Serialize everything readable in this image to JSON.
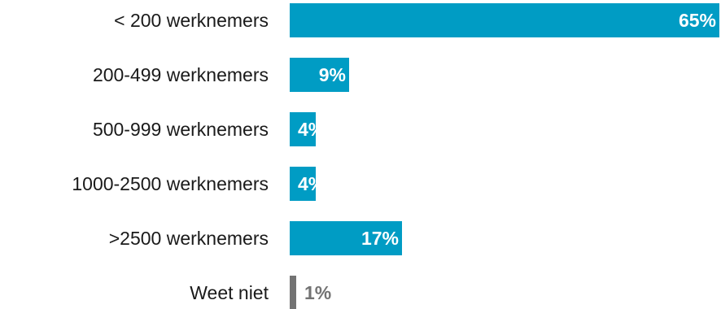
{
  "chart_data": {
    "type": "bar",
    "orientation": "horizontal",
    "categories": [
      "< 200 werknemers",
      "200-499 werknemers",
      "500-999 werknemers",
      "1000-2500 werknemers",
      ">2500 werknemers",
      "Weet niet"
    ],
    "values": [
      65,
      9,
      4,
      4,
      17,
      1
    ],
    "value_labels": [
      "65%",
      "9%",
      "4%",
      "4%",
      "17%",
      "1%"
    ],
    "bar_colors": [
      "#009cc4",
      "#009cc4",
      "#009cc4",
      "#009cc4",
      "#009cc4",
      "#737373"
    ],
    "label_colors": [
      "#ffffff",
      "#ffffff",
      "#ffffff",
      "#ffffff",
      "#ffffff",
      "#737373"
    ],
    "title": "",
    "xlabel": "",
    "ylabel": "",
    "xlim": [
      0,
      65
    ],
    "grid": false,
    "legend": "none"
  }
}
